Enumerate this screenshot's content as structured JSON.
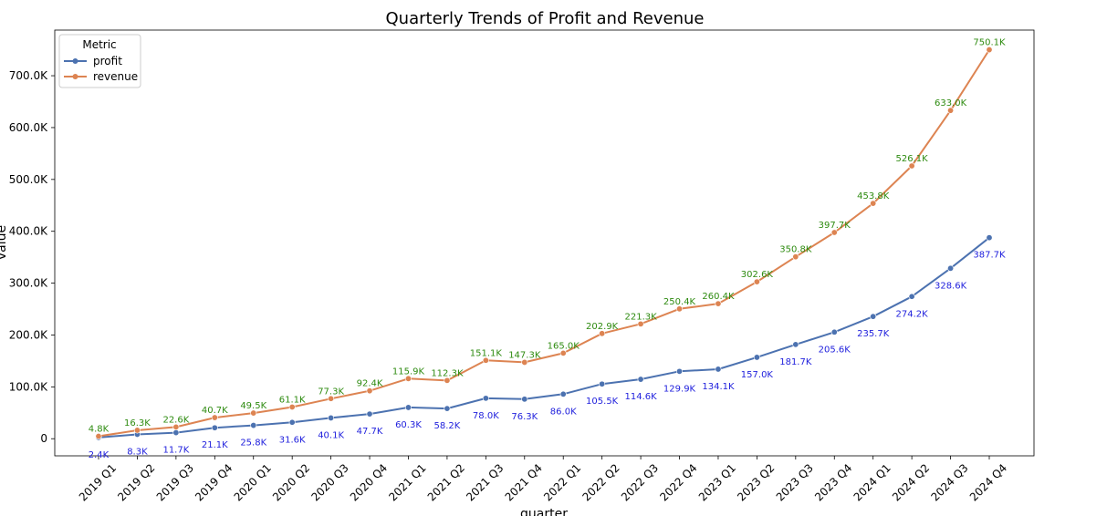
{
  "chart_data": {
    "type": "line",
    "title": "Quarterly Trends of Profit and Revenue",
    "xlabel": "quarter",
    "ylabel": "value",
    "ylim": [
      -33000,
      788000
    ],
    "yticks": [
      0,
      100000,
      200000,
      300000,
      400000,
      500000,
      600000,
      700000
    ],
    "ytick_labels": [
      "0",
      "100.0K",
      "200.0K",
      "300.0K",
      "400.0K",
      "500.0K",
      "600.0K",
      "700.0K"
    ],
    "categories": [
      "2019 Q1",
      "2019 Q2",
      "2019 Q3",
      "2019 Q4",
      "2020 Q1",
      "2020 Q2",
      "2020 Q3",
      "2020 Q4",
      "2021 Q1",
      "2021 Q2",
      "2021 Q3",
      "2021 Q4",
      "2022 Q1",
      "2022 Q2",
      "2022 Q3",
      "2022 Q4",
      "2023 Q1",
      "2023 Q2",
      "2023 Q3",
      "2023 Q4",
      "2024 Q1",
      "2024 Q2",
      "2024 Q3",
      "2024 Q4"
    ],
    "legend": {
      "title": "Metric",
      "position": "top-left"
    },
    "grid": false,
    "series": [
      {
        "name": "profit",
        "color": "#4c72b0",
        "label_color": "#2222dd",
        "values": [
          2400,
          8300,
          11700,
          21100,
          25800,
          31600,
          40100,
          47700,
          60300,
          58200,
          78000,
          76300,
          86000,
          105500,
          114600,
          129900,
          134100,
          157000,
          181700,
          205600,
          235700,
          274200,
          328600,
          387700
        ],
        "labels": [
          "2.4K",
          "8.3K",
          "11.7K",
          "21.1K",
          "25.8K",
          "31.6K",
          "40.1K",
          "47.7K",
          "60.3K",
          "58.2K",
          "78.0K",
          "76.3K",
          "86.0K",
          "105.5K",
          "114.6K",
          "129.9K",
          "134.1K",
          "157.0K",
          "181.7K",
          "205.6K",
          "235.7K",
          "274.2K",
          "328.6K",
          "387.7K"
        ]
      },
      {
        "name": "revenue",
        "color": "#dd8452",
        "label_color": "#2e8b10",
        "values": [
          4800,
          16300,
          22600,
          40700,
          49500,
          61100,
          77300,
          92400,
          115900,
          112300,
          151100,
          147300,
          165000,
          202900,
          221300,
          250400,
          260400,
          302600,
          350800,
          397700,
          453800,
          526100,
          633000,
          750100
        ],
        "labels": [
          "4.8K",
          "16.3K",
          "22.6K",
          "40.7K",
          "49.5K",
          "61.1K",
          "77.3K",
          "92.4K",
          "115.9K",
          "112.3K",
          "151.1K",
          "147.3K",
          "165.0K",
          "202.9K",
          "221.3K",
          "250.4K",
          "260.4K",
          "302.6K",
          "350.8K",
          "397.7K",
          "453.8K",
          "526.1K",
          "633.0K",
          "750.1K"
        ]
      }
    ]
  }
}
